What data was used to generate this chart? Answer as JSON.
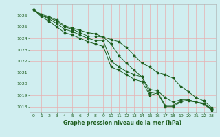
{
  "title": "Graphe pression niveau de la mer (hPa)",
  "background_color": "#d0eef0",
  "grid_color_major": "#e8b0b0",
  "grid_color_minor": "#e8c8c8",
  "line_color": "#1e5e1e",
  "xlim": [
    -0.5,
    23.5
  ],
  "ylim": [
    1017.5,
    1027.0
  ],
  "yticks": [
    1018,
    1019,
    1020,
    1021,
    1022,
    1023,
    1024,
    1025,
    1026
  ],
  "xticks": [
    0,
    1,
    2,
    3,
    4,
    5,
    6,
    7,
    8,
    9,
    10,
    11,
    12,
    13,
    14,
    15,
    16,
    17,
    18,
    19,
    20,
    21,
    22,
    23
  ],
  "series": [
    [
      1026.5,
      1026.1,
      1025.9,
      1025.6,
      1025.1,
      1024.9,
      1024.7,
      1024.5,
      1024.4,
      1024.1,
      1023.9,
      1023.7,
      1023.2,
      1022.5,
      1021.8,
      1021.5,
      1021.0,
      1020.8,
      1020.5,
      1019.8,
      1019.3,
      1018.8,
      1018.5,
      1017.9
    ],
    [
      1026.5,
      1026.0,
      1025.8,
      1025.5,
      1025.0,
      1024.8,
      1024.5,
      1024.2,
      1024.2,
      1024.1,
      1023.5,
      1022.5,
      1021.8,
      1021.2,
      1020.6,
      1019.5,
      1019.4,
      1018.8,
      1018.4,
      1018.6,
      1018.6,
      1018.4,
      1018.2,
      1017.8
    ],
    [
      1026.5,
      1026.0,
      1025.7,
      1025.3,
      1024.8,
      1024.6,
      1024.3,
      1024.0,
      1023.8,
      1023.8,
      1022.0,
      1021.5,
      1021.1,
      1020.8,
      1020.6,
      1019.2,
      1019.3,
      1018.1,
      1018.1,
      1018.5,
      1018.5,
      1018.4,
      1018.3,
      1017.8
    ],
    [
      1026.5,
      1025.9,
      1025.5,
      1025.0,
      1024.5,
      1024.3,
      1024.0,
      1023.7,
      1023.5,
      1023.3,
      1021.5,
      1021.2,
      1020.8,
      1020.4,
      1020.2,
      1019.0,
      1019.2,
      1018.0,
      1018.0,
      1018.4,
      1018.6,
      1018.4,
      1018.2,
      1017.7
    ]
  ]
}
